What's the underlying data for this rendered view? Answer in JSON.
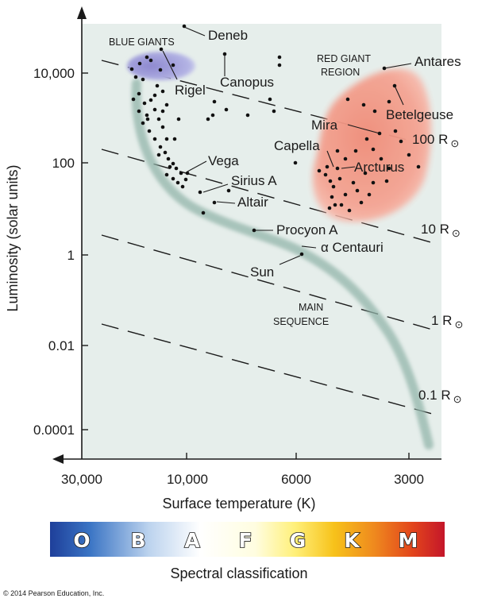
{
  "axes": {
    "ylabel": "Luminosity (solar units)",
    "xlabel": "Surface temperature (K)",
    "y_ticks": [
      "10,000",
      "100",
      "1",
      "0.01",
      "0.0001"
    ],
    "x_ticks": [
      "30,000",
      "10,000",
      "6000",
      "3000"
    ]
  },
  "regions": {
    "blue_giants": "BLUE GIANTS",
    "red_giant_line1": "RED GIANT",
    "red_giant_line2": "REGION",
    "main_seq_line1": "MAIN",
    "main_seq_line2": "SEQUENCE"
  },
  "stars": [
    "Deneb",
    "Rigel",
    "Canopus",
    "Antares",
    "Betelgeuse",
    "Mira",
    "Capella",
    "Arcturus",
    "Vega",
    "Sirius A",
    "Altair",
    "Procyon A",
    "α Centauri",
    "Sun"
  ],
  "radius_lines": {
    "r100": "100 R",
    "r10": "10 R",
    "r1": "1 R",
    "r01": "0.1 R",
    "sun_symbol": "⊙"
  },
  "spectral": {
    "caption": "Spectral classification",
    "classes": [
      "O",
      "B",
      "A",
      "F",
      "G",
      "K",
      "M"
    ]
  },
  "copyright": "© 2014 Pearson Education, Inc."
}
